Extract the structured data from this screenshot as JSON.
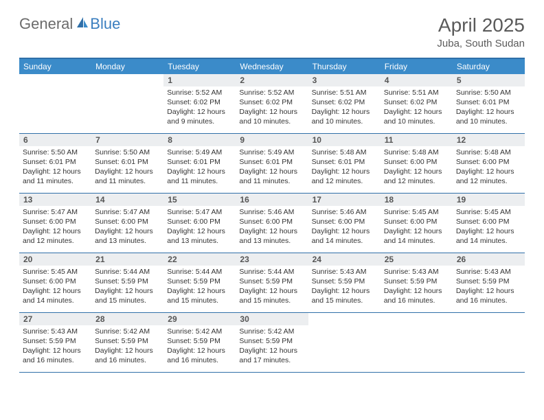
{
  "brand": {
    "general": "General",
    "blue": "Blue"
  },
  "title": {
    "month": "April 2025",
    "location": "Juba, South Sudan"
  },
  "colors": {
    "header_bar": "#3b8bc9",
    "header_border": "#2f6fa8",
    "daynum_bg": "#eceef0",
    "logo_gray": "#6b6b6b",
    "logo_blue": "#3a7ebf"
  },
  "weekdays": [
    "Sunday",
    "Monday",
    "Tuesday",
    "Wednesday",
    "Thursday",
    "Friday",
    "Saturday"
  ],
  "weeks": [
    [
      null,
      null,
      {
        "n": "1",
        "sr": "Sunrise: 5:52 AM",
        "ss": "Sunset: 6:02 PM",
        "d1": "Daylight: 12 hours",
        "d2": "and 9 minutes."
      },
      {
        "n": "2",
        "sr": "Sunrise: 5:52 AM",
        "ss": "Sunset: 6:02 PM",
        "d1": "Daylight: 12 hours",
        "d2": "and 10 minutes."
      },
      {
        "n": "3",
        "sr": "Sunrise: 5:51 AM",
        "ss": "Sunset: 6:02 PM",
        "d1": "Daylight: 12 hours",
        "d2": "and 10 minutes."
      },
      {
        "n": "4",
        "sr": "Sunrise: 5:51 AM",
        "ss": "Sunset: 6:02 PM",
        "d1": "Daylight: 12 hours",
        "d2": "and 10 minutes."
      },
      {
        "n": "5",
        "sr": "Sunrise: 5:50 AM",
        "ss": "Sunset: 6:01 PM",
        "d1": "Daylight: 12 hours",
        "d2": "and 10 minutes."
      }
    ],
    [
      {
        "n": "6",
        "sr": "Sunrise: 5:50 AM",
        "ss": "Sunset: 6:01 PM",
        "d1": "Daylight: 12 hours",
        "d2": "and 11 minutes."
      },
      {
        "n": "7",
        "sr": "Sunrise: 5:50 AM",
        "ss": "Sunset: 6:01 PM",
        "d1": "Daylight: 12 hours",
        "d2": "and 11 minutes."
      },
      {
        "n": "8",
        "sr": "Sunrise: 5:49 AM",
        "ss": "Sunset: 6:01 PM",
        "d1": "Daylight: 12 hours",
        "d2": "and 11 minutes."
      },
      {
        "n": "9",
        "sr": "Sunrise: 5:49 AM",
        "ss": "Sunset: 6:01 PM",
        "d1": "Daylight: 12 hours",
        "d2": "and 11 minutes."
      },
      {
        "n": "10",
        "sr": "Sunrise: 5:48 AM",
        "ss": "Sunset: 6:01 PM",
        "d1": "Daylight: 12 hours",
        "d2": "and 12 minutes."
      },
      {
        "n": "11",
        "sr": "Sunrise: 5:48 AM",
        "ss": "Sunset: 6:00 PM",
        "d1": "Daylight: 12 hours",
        "d2": "and 12 minutes."
      },
      {
        "n": "12",
        "sr": "Sunrise: 5:48 AM",
        "ss": "Sunset: 6:00 PM",
        "d1": "Daylight: 12 hours",
        "d2": "and 12 minutes."
      }
    ],
    [
      {
        "n": "13",
        "sr": "Sunrise: 5:47 AM",
        "ss": "Sunset: 6:00 PM",
        "d1": "Daylight: 12 hours",
        "d2": "and 12 minutes."
      },
      {
        "n": "14",
        "sr": "Sunrise: 5:47 AM",
        "ss": "Sunset: 6:00 PM",
        "d1": "Daylight: 12 hours",
        "d2": "and 13 minutes."
      },
      {
        "n": "15",
        "sr": "Sunrise: 5:47 AM",
        "ss": "Sunset: 6:00 PM",
        "d1": "Daylight: 12 hours",
        "d2": "and 13 minutes."
      },
      {
        "n": "16",
        "sr": "Sunrise: 5:46 AM",
        "ss": "Sunset: 6:00 PM",
        "d1": "Daylight: 12 hours",
        "d2": "and 13 minutes."
      },
      {
        "n": "17",
        "sr": "Sunrise: 5:46 AM",
        "ss": "Sunset: 6:00 PM",
        "d1": "Daylight: 12 hours",
        "d2": "and 14 minutes."
      },
      {
        "n": "18",
        "sr": "Sunrise: 5:45 AM",
        "ss": "Sunset: 6:00 PM",
        "d1": "Daylight: 12 hours",
        "d2": "and 14 minutes."
      },
      {
        "n": "19",
        "sr": "Sunrise: 5:45 AM",
        "ss": "Sunset: 6:00 PM",
        "d1": "Daylight: 12 hours",
        "d2": "and 14 minutes."
      }
    ],
    [
      {
        "n": "20",
        "sr": "Sunrise: 5:45 AM",
        "ss": "Sunset: 6:00 PM",
        "d1": "Daylight: 12 hours",
        "d2": "and 14 minutes."
      },
      {
        "n": "21",
        "sr": "Sunrise: 5:44 AM",
        "ss": "Sunset: 5:59 PM",
        "d1": "Daylight: 12 hours",
        "d2": "and 15 minutes."
      },
      {
        "n": "22",
        "sr": "Sunrise: 5:44 AM",
        "ss": "Sunset: 5:59 PM",
        "d1": "Daylight: 12 hours",
        "d2": "and 15 minutes."
      },
      {
        "n": "23",
        "sr": "Sunrise: 5:44 AM",
        "ss": "Sunset: 5:59 PM",
        "d1": "Daylight: 12 hours",
        "d2": "and 15 minutes."
      },
      {
        "n": "24",
        "sr": "Sunrise: 5:43 AM",
        "ss": "Sunset: 5:59 PM",
        "d1": "Daylight: 12 hours",
        "d2": "and 15 minutes."
      },
      {
        "n": "25",
        "sr": "Sunrise: 5:43 AM",
        "ss": "Sunset: 5:59 PM",
        "d1": "Daylight: 12 hours",
        "d2": "and 16 minutes."
      },
      {
        "n": "26",
        "sr": "Sunrise: 5:43 AM",
        "ss": "Sunset: 5:59 PM",
        "d1": "Daylight: 12 hours",
        "d2": "and 16 minutes."
      }
    ],
    [
      {
        "n": "27",
        "sr": "Sunrise: 5:43 AM",
        "ss": "Sunset: 5:59 PM",
        "d1": "Daylight: 12 hours",
        "d2": "and 16 minutes."
      },
      {
        "n": "28",
        "sr": "Sunrise: 5:42 AM",
        "ss": "Sunset: 5:59 PM",
        "d1": "Daylight: 12 hours",
        "d2": "and 16 minutes."
      },
      {
        "n": "29",
        "sr": "Sunrise: 5:42 AM",
        "ss": "Sunset: 5:59 PM",
        "d1": "Daylight: 12 hours",
        "d2": "and 16 minutes."
      },
      {
        "n": "30",
        "sr": "Sunrise: 5:42 AM",
        "ss": "Sunset: 5:59 PM",
        "d1": "Daylight: 12 hours",
        "d2": "and 17 minutes."
      },
      null,
      null,
      null
    ]
  ]
}
